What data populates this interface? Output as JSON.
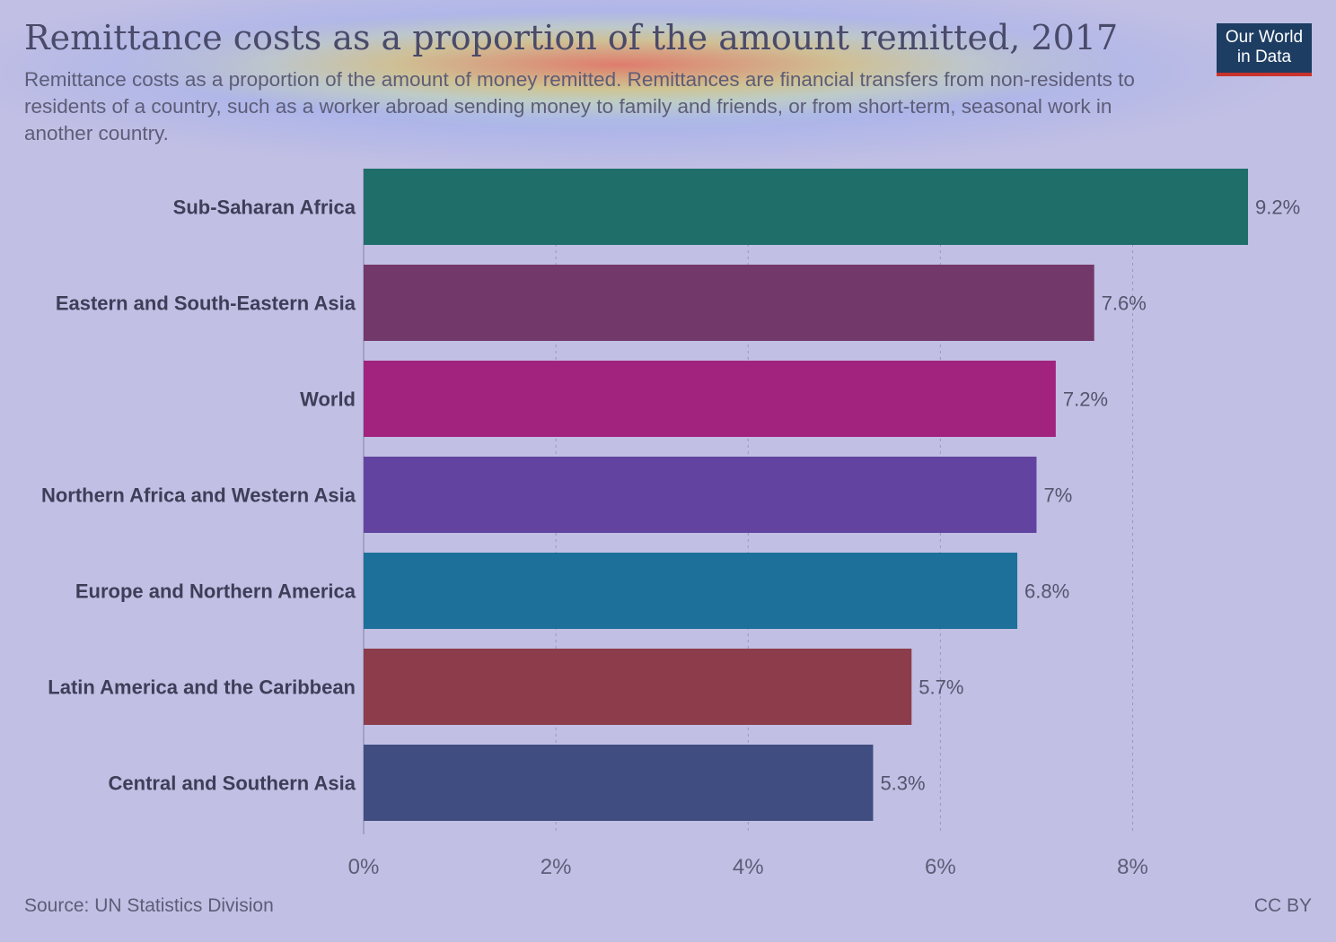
{
  "header": {
    "title": "Remittance costs as a proportion of the amount remitted, 2017",
    "subtitle": "Remittance costs as a proportion of the amount of money remitted. Remittances are financial transfers from non-residents to residents of a country, such as a worker abroad sending money to family and friends, or from short-term, seasonal work in another country.",
    "logo_line1": "Our World",
    "logo_line2": "in Data"
  },
  "footer": {
    "source": "Source: UN Statistics Division",
    "license": "CC BY"
  },
  "colors": {
    "background": "#c1bfe4",
    "logo_bg": "#1d3d63",
    "logo_accent": "#c8332d"
  },
  "chart_data": {
    "type": "bar",
    "orientation": "horizontal",
    "title": "Remittance costs as a proportion of the amount remitted, 2017",
    "categories": [
      "Sub-Saharan Africa",
      "Eastern and South-Eastern Asia",
      "World",
      "Northern Africa and Western Asia",
      "Europe and Northern America",
      "Latin America and the Caribbean",
      "Central and Southern Asia"
    ],
    "values": [
      9.2,
      7.6,
      7.2,
      7.0,
      6.8,
      5.7,
      5.3
    ],
    "value_labels": [
      "9.2%",
      "7.6%",
      "7.2%",
      "7%",
      "6.8%",
      "5.7%",
      "5.3%"
    ],
    "bar_colors": [
      "#1f6e6a",
      "#723869",
      "#a2237d",
      "#6244a0",
      "#1d7099",
      "#8c3c4a",
      "#404d80"
    ],
    "xlim": [
      0,
      9.2
    ],
    "x_ticks": [
      0,
      2,
      4,
      6,
      8
    ],
    "x_tick_labels": [
      "0%",
      "2%",
      "4%",
      "6%",
      "8%"
    ],
    "grid": true,
    "grid_style": "dashed vertical"
  }
}
